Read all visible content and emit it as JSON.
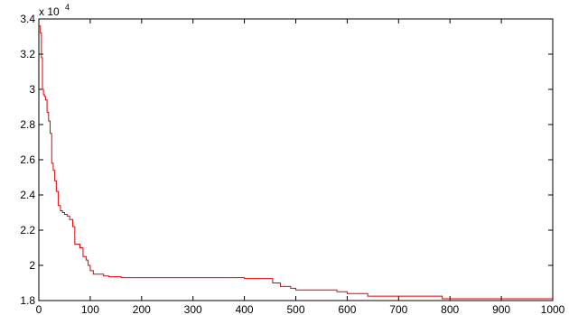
{
  "chart_data": {
    "type": "line",
    "title": "",
    "xlabel": "",
    "ylabel": "",
    "xlim": [
      0,
      1000
    ],
    "ylim": [
      18000,
      34000
    ],
    "grid": false,
    "y_multiplier_label": "x 10",
    "y_multiplier_exponent": "4",
    "x_ticks": [
      0,
      100,
      200,
      300,
      400,
      500,
      600,
      700,
      800,
      900,
      1000
    ],
    "x_tick_labels": [
      "0",
      "100",
      "200",
      "300",
      "400",
      "500",
      "600",
      "700",
      "800",
      "900",
      "1000"
    ],
    "y_ticks": [
      18000,
      20000,
      22000,
      24000,
      26000,
      28000,
      30000,
      32000,
      34000
    ],
    "y_tick_labels": [
      "1.8",
      "2",
      "2.2",
      "2.4",
      "2.6",
      "2.8",
      "3",
      "3.2",
      "3.4"
    ],
    "line_color": "#e00000",
    "series": [
      {
        "step": true,
        "x": [
          0,
          3,
          5,
          7,
          9,
          11,
          13,
          16,
          19,
          22,
          25,
          28,
          31,
          34,
          38,
          42,
          46,
          50,
          55,
          60,
          66,
          70,
          74,
          80,
          86,
          92,
          96,
          100,
          106,
          116,
          126,
          136,
          160,
          200,
          300,
          400,
          448,
          455,
          470,
          480,
          490,
          500,
          540,
          580,
          600,
          620,
          640,
          700,
          785,
          800,
          1000
        ],
        "y": [
          33600,
          33200,
          31800,
          30000,
          29700,
          29600,
          29400,
          28700,
          28200,
          27500,
          25800,
          25400,
          24800,
          24200,
          23400,
          23100,
          23000,
          22900,
          22800,
          22600,
          22200,
          21200,
          21200,
          21000,
          20500,
          20300,
          20000,
          19700,
          19500,
          19500,
          19400,
          19350,
          19300,
          19300,
          19300,
          19250,
          19250,
          19000,
          18800,
          18800,
          18700,
          18600,
          18600,
          18500,
          18400,
          18400,
          18250,
          18250,
          18100,
          18100,
          18100
        ]
      }
    ]
  }
}
